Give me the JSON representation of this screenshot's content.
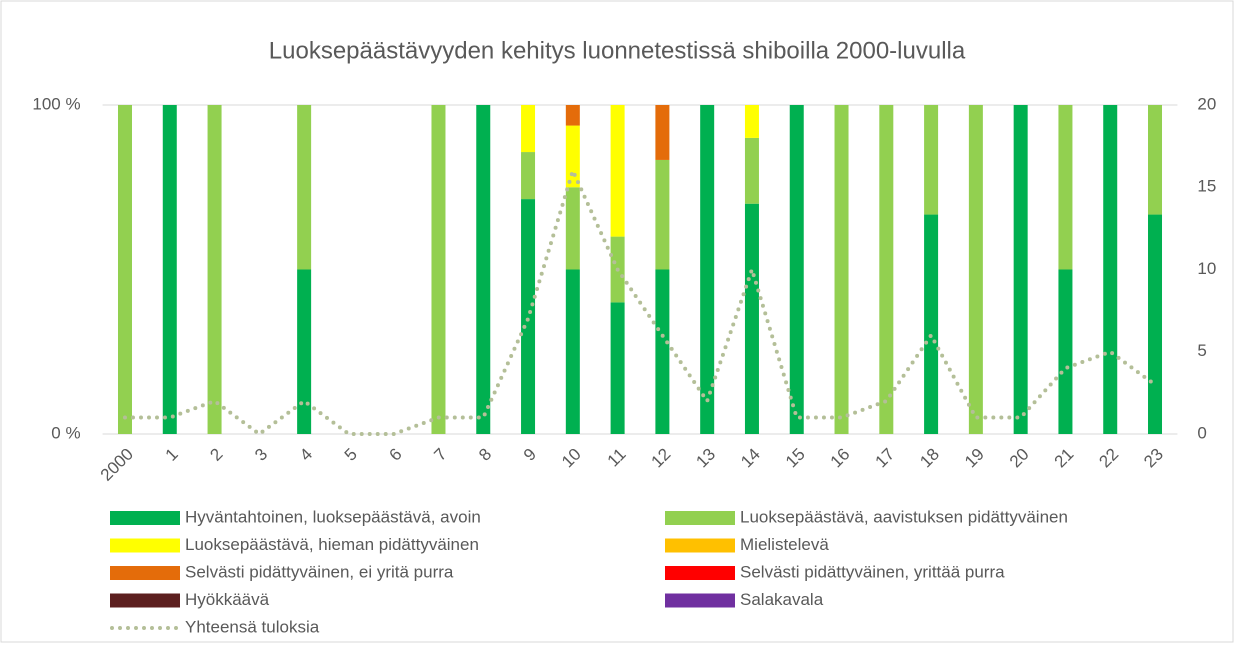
{
  "chart_data": {
    "type": "stacked-bar-line",
    "title": "Luoksepäästävyyden kehitys luonnetestissä shiboilla 2000-luvulla",
    "categories": [
      "2000",
      "1",
      "2",
      "3",
      "4",
      "5",
      "6",
      "7",
      "8",
      "9",
      "10",
      "11",
      "12",
      "13",
      "14",
      "15",
      "16",
      "17",
      "18",
      "19",
      "20",
      "21",
      "22",
      "23"
    ],
    "series": [
      {
        "name": "Hyväntahtoinen, luoksepäästävä, avoin",
        "color": "#00b050",
        "values": [
          0,
          100,
          0,
          0,
          50,
          0,
          0,
          0,
          100,
          71.4,
          50,
          40,
          50,
          100,
          70,
          100,
          0,
          0,
          66.7,
          0,
          100,
          50,
          100,
          66.7
        ]
      },
      {
        "name": "Luoksepäästävä, aavistuksen pidättyväinen",
        "color": "#92d050",
        "values": [
          100,
          0,
          100,
          0,
          50,
          0,
          0,
          100,
          0,
          14.3,
          25,
          20,
          33.3,
          0,
          20,
          0,
          100,
          100,
          33.3,
          100,
          0,
          50,
          0,
          33.3
        ]
      },
      {
        "name": "Luoksepäästävä, hieman pidättyväinen",
        "color": "#ffff00",
        "values": [
          0,
          0,
          0,
          0,
          0,
          0,
          0,
          0,
          0,
          14.3,
          18.75,
          40,
          0,
          0,
          10,
          0,
          0,
          0,
          0,
          0,
          0,
          0,
          0,
          0
        ]
      },
      {
        "name": "Mielistelevä",
        "color": "#ffc000",
        "values": [
          0,
          0,
          0,
          0,
          0,
          0,
          0,
          0,
          0,
          0,
          0,
          0,
          0,
          0,
          0,
          0,
          0,
          0,
          0,
          0,
          0,
          0,
          0,
          0
        ]
      },
      {
        "name": "Selvästi pidättyväinen, ei yritä purra",
        "color": "#e46c0a",
        "values": [
          0,
          0,
          0,
          0,
          0,
          0,
          0,
          0,
          0,
          0,
          6.25,
          0,
          16.7,
          0,
          0,
          0,
          0,
          0,
          0,
          0,
          0,
          0,
          0,
          0
        ]
      },
      {
        "name": "Selvästi pidättyväinen, yrittää purra",
        "color": "#ff0000",
        "values": [
          0,
          0,
          0,
          0,
          0,
          0,
          0,
          0,
          0,
          0,
          0,
          0,
          0,
          0,
          0,
          0,
          0,
          0,
          0,
          0,
          0,
          0,
          0,
          0
        ]
      },
      {
        "name": "Hyökkäävä",
        "color": "#5c1f1f",
        "values": [
          0,
          0,
          0,
          0,
          0,
          0,
          0,
          0,
          0,
          0,
          0,
          0,
          0,
          0,
          0,
          0,
          0,
          0,
          0,
          0,
          0,
          0,
          0,
          0
        ]
      },
      {
        "name": "Salakavala",
        "color": "#7030a0",
        "values": [
          0,
          0,
          0,
          0,
          0,
          0,
          0,
          0,
          0,
          0,
          0,
          0,
          0,
          0,
          0,
          0,
          0,
          0,
          0,
          0,
          0,
          0,
          0,
          0
        ]
      },
      {
        "name": "Yhteensä tuloksia",
        "color": "#b4bf98",
        "type": "line",
        "axis": "y2",
        "values": [
          1,
          1,
          2,
          0,
          2,
          0,
          0,
          1,
          1,
          7,
          16,
          10,
          6,
          2,
          10,
          1,
          1,
          2,
          6,
          1,
          1,
          4,
          5,
          3
        ]
      }
    ],
    "ylim": [
      0,
      100
    ],
    "yticks": [
      {
        "value": 0,
        "label": "0 %"
      },
      {
        "value": 100,
        "label": "100 %"
      }
    ],
    "y2lim": [
      0,
      20
    ],
    "y2ticks": [
      0,
      5,
      10,
      15,
      20
    ],
    "grid": true,
    "legend": "bottom"
  }
}
